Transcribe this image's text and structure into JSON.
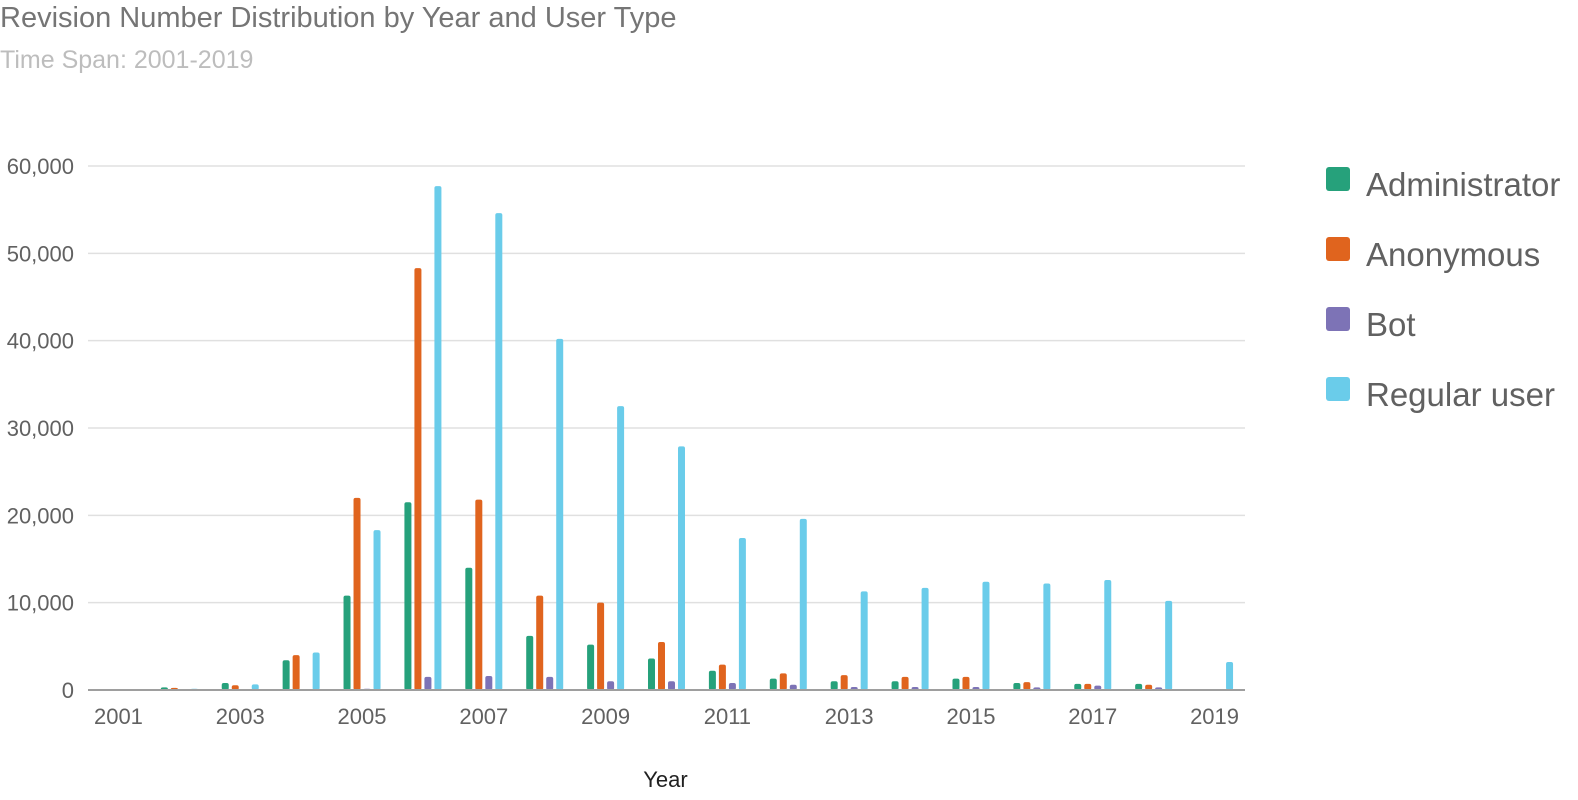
{
  "chart_data": {
    "type": "bar",
    "title": "Revision Number Distribution by Year and User Type",
    "subtitle": "Time Span: 2001-2019",
    "xlabel": "Year",
    "ylabel": "",
    "ylim": [
      0,
      60000
    ],
    "yticks": [
      0,
      10000,
      20000,
      30000,
      40000,
      50000,
      60000
    ],
    "ytick_labels": [
      "0",
      "10,000",
      "20,000",
      "30,000",
      "40,000",
      "50,000",
      "60,000"
    ],
    "categories": [
      "2001",
      "2002",
      "2003",
      "2004",
      "2005",
      "2006",
      "2007",
      "2008",
      "2009",
      "2010",
      "2011",
      "2012",
      "2013",
      "2014",
      "2015",
      "2016",
      "2017",
      "2018",
      "2019"
    ],
    "xtick_labels": [
      "2001",
      "",
      "2003",
      "",
      "2005",
      "",
      "2007",
      "",
      "2009",
      "",
      "2011",
      "",
      "2013",
      "",
      "2015",
      "",
      "2017",
      "",
      "2019"
    ],
    "grid": true,
    "legend_position": "right",
    "series": [
      {
        "name": "Administrator",
        "color": "#26a17b",
        "values": [
          20,
          300,
          800,
          3400,
          10800,
          21500,
          14000,
          6200,
          5200,
          3600,
          2200,
          1300,
          1000,
          1000,
          1300,
          800,
          700,
          700,
          100
        ]
      },
      {
        "name": "Anonymous",
        "color": "#e0641e",
        "values": [
          20,
          250,
          550,
          4000,
          22000,
          48300,
          21800,
          10800,
          10000,
          5500,
          2900,
          1900,
          1700,
          1500,
          1500,
          900,
          700,
          600,
          50
        ]
      },
      {
        "name": "Bot",
        "color": "#7d73b6",
        "values": [
          0,
          0,
          30,
          50,
          150,
          1500,
          1600,
          1500,
          1000,
          1000,
          800,
          600,
          350,
          350,
          350,
          300,
          500,
          300,
          20
        ]
      },
      {
        "name": "Regular user",
        "color": "#6accea",
        "values": [
          20,
          150,
          650,
          4300,
          18300,
          57700,
          54600,
          40200,
          32500,
          27900,
          17400,
          19600,
          11300,
          11700,
          12400,
          12200,
          12600,
          10200,
          3200
        ]
      }
    ]
  }
}
